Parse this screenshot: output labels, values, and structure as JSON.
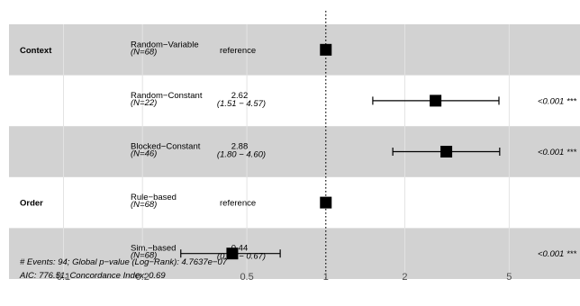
{
  "chart_data": {
    "type": "forest",
    "x_scale": "log",
    "xlim": [
      0.1,
      7.2
    ],
    "reference_value": 1,
    "x_ticks": [
      "0.1",
      "0.2",
      "0.5",
      "1",
      "2",
      "5"
    ],
    "rows": [
      {
        "variable": "Context",
        "level": "Random−Variable",
        "n": "(N=68)",
        "reference": "reference",
        "hr": 1,
        "ci_low": null,
        "ci_high": null,
        "shaded": true
      },
      {
        "variable": "",
        "level": "Random−Constant",
        "n": "(N=22)",
        "estimate_label": "2.62",
        "ci_label": "(1.51 − 4.57)",
        "hr": 2.62,
        "ci_low": 1.51,
        "ci_high": 4.57,
        "p_label": "<0.001 ***",
        "shaded": false
      },
      {
        "variable": "",
        "level": "Blocked−Constant",
        "n": "(N=46)",
        "estimate_label": "2.88",
        "ci_label": "(1.80 − 4.60)",
        "hr": 2.88,
        "ci_low": 1.8,
        "ci_high": 4.6,
        "p_label": "<0.001 ***",
        "shaded": true
      },
      {
        "variable": "Order",
        "level": "Rule−based",
        "n": "(N=68)",
        "reference": "reference",
        "hr": 1,
        "ci_low": null,
        "ci_high": null,
        "shaded": false
      },
      {
        "variable": "",
        "level": "Sim.−based",
        "n": "(N=68)",
        "estimate_label": "0.44",
        "ci_label": "(0.28 − 0.67)",
        "hr": 0.44,
        "ci_low": 0.28,
        "ci_high": 0.67,
        "p_label": "<0.001 ***",
        "shaded": true
      }
    ],
    "footer": [
      "# Events: 94; Global p−value (Log−Rank): 4.7637e−07",
      "AIC: 776.51; Concordance Index: 0.69"
    ],
    "colors": {
      "shade": "#d2d2d2",
      "grid": "#e3e3e3",
      "point": "#000000",
      "tick_text": "#4d4d4d"
    }
  }
}
